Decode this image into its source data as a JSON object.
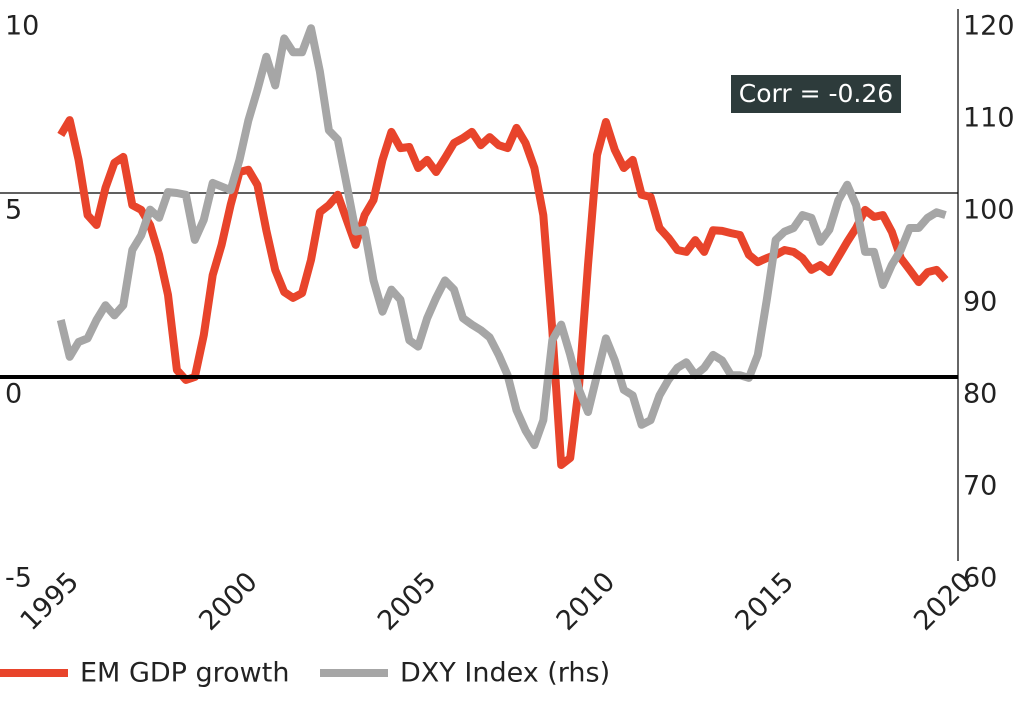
{
  "chart_data": {
    "type": "line",
    "annotation": "Corr = -0.26",
    "x": [
      1995,
      1995.25,
      1995.5,
      1995.75,
      1996,
      1996.25,
      1996.5,
      1996.75,
      1997,
      1997.25,
      1997.5,
      1997.75,
      1998,
      1998.25,
      1998.5,
      1998.75,
      1999,
      1999.25,
      1999.5,
      1999.75,
      2000,
      2000.25,
      2000.5,
      2000.75,
      2001,
      2001.25,
      2001.5,
      2001.75,
      2002,
      2002.25,
      2002.5,
      2002.75,
      2003,
      2003.25,
      2003.5,
      2003.75,
      2004,
      2004.25,
      2004.5,
      2004.75,
      2005,
      2005.25,
      2005.5,
      2005.75,
      2006,
      2006.25,
      2006.5,
      2006.75,
      2007,
      2007.25,
      2007.5,
      2007.75,
      2008,
      2008.25,
      2008.5,
      2008.75,
      2009,
      2009.25,
      2009.5,
      2009.75,
      2010,
      2010.25,
      2010.5,
      2010.75,
      2011,
      2011.25,
      2011.5,
      2011.75,
      2012,
      2012.25,
      2012.5,
      2012.75,
      2013,
      2013.25,
      2013.5,
      2013.75,
      2014,
      2014.25,
      2014.5,
      2014.75,
      2015,
      2015.25,
      2015.5,
      2015.75,
      2016,
      2016.25,
      2016.5,
      2016.75,
      2017,
      2017.25,
      2017.5,
      2017.75,
      2018,
      2018.25,
      2018.5,
      2018.75,
      2019,
      2019.25,
      2019.5,
      2019.75
    ],
    "series": [
      {
        "name": "EM GDP growth",
        "color": "#e8442b",
        "values": [
          6.58,
          6.98,
          5.9,
          4.4,
          4.13,
          5.14,
          5.82,
          5.98,
          4.67,
          4.54,
          4.13,
          3.32,
          2.23,
          0.19,
          -0.08,
          0,
          1.14,
          2.77,
          3.59,
          4.67,
          5.57,
          5.63,
          5.22,
          3.99,
          2.91,
          2.31,
          2.15,
          2.28,
          3.18,
          4.48,
          4.67,
          4.95,
          4.27,
          3.59,
          4.4,
          4.81,
          5.9,
          6.66,
          6.22,
          6.25,
          5.68,
          5.9,
          5.57,
          5.95,
          6.36,
          6.49,
          6.66,
          6.3,
          6.52,
          6.3,
          6.22,
          6.77,
          6.36,
          5.68,
          4.4,
          1.28,
          -2.39,
          -2.2,
          -0.22,
          3.04,
          6.03,
          6.93,
          6.17,
          5.68,
          5.9,
          4.95,
          4.89,
          4.05,
          3.78,
          3.45,
          3.4,
          3.72,
          3.4,
          3.99,
          3.97,
          3.91,
          3.86,
          3.32,
          3.12,
          3.23,
          3.32,
          3.45,
          3.4,
          3.23,
          2.91,
          3.04,
          2.85,
          3.26,
          3.67,
          4.05,
          4.54,
          4.35,
          4.4,
          3.94,
          3.23,
          2.91,
          2.58,
          2.85,
          2.91,
          2.64
        ]
      },
      {
        "name": "DXY Index (rhs)",
        "color": "#a6a6a6",
        "axis": "y2",
        "values": [
          86.2,
          82.2,
          83.8,
          84.2,
          86.2,
          87.8,
          86.7,
          87.8,
          93.8,
          95.4,
          98.2,
          97.3,
          100.1,
          100,
          99.8,
          94.9,
          97.1,
          101.1,
          100.7,
          100.3,
          103.6,
          107.9,
          111.2,
          114.8,
          111.7,
          116.8,
          115.3,
          115.3,
          117.9,
          113.2,
          106.8,
          105.8,
          100.9,
          95.8,
          96,
          90.5,
          87.1,
          89.5,
          88.4,
          84,
          83.3,
          86.4,
          88.6,
          90.5,
          89.5,
          86.4,
          85.7,
          85.1,
          84.3,
          82.4,
          80.2,
          76.4,
          74.2,
          72.6,
          75.3,
          84,
          85.7,
          82.4,
          78.6,
          76.2,
          80.2,
          84.2,
          81.8,
          78.6,
          78,
          74.8,
          75.3,
          78,
          79.7,
          81,
          81.6,
          80.2,
          81,
          82.4,
          81.8,
          80.2,
          80.2,
          79.9,
          82.4,
          88.4,
          94.9,
          95.8,
          96.2,
          97.6,
          97.3,
          94.7,
          96,
          99.2,
          100.9,
          98.7,
          93.6,
          93.6,
          90,
          92.2,
          93.8,
          96.2,
          96.2,
          97.3,
          97.9,
          97.6
        ]
      }
    ],
    "xlim": [
      1993.3,
      2020.1
    ],
    "xticks": [
      1995,
      2000,
      2005,
      2010,
      2015,
      2020
    ],
    "ylim": [
      -5,
      10
    ],
    "yticks": [
      -5,
      0,
      5,
      10
    ],
    "y2lim": [
      60,
      120
    ],
    "y2ticks": [
      60,
      70,
      80,
      90,
      100,
      110,
      120
    ],
    "grid": true,
    "zero_line": true,
    "legend": "bottom"
  }
}
